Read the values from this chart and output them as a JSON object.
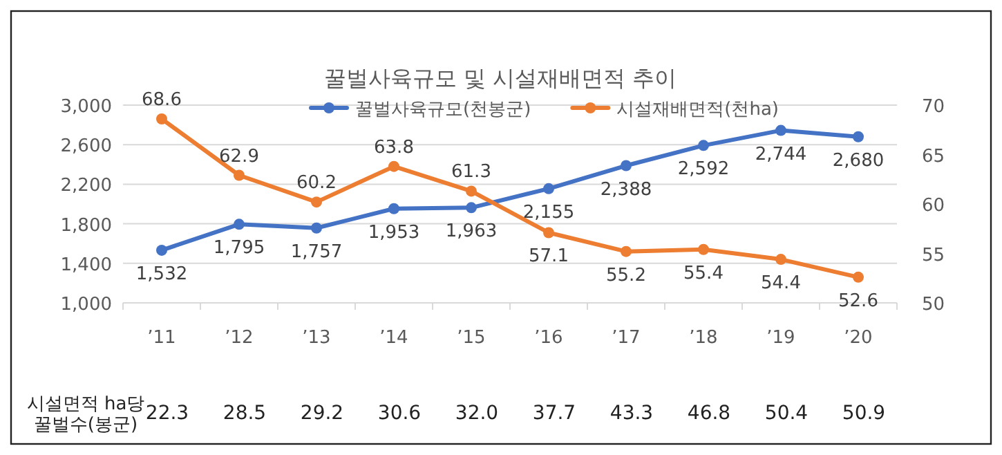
{
  "chart_data": {
    "type": "line",
    "title": "꿀벌사육규모 및 시설재배면적 추이",
    "categories": [
      "’11",
      "’12",
      "’13",
      "’14",
      "’15",
      "’16",
      "’17",
      "’18",
      "’19",
      "’20"
    ],
    "series": [
      {
        "name": "꿀벌사육규모(천봉군)",
        "color": "#4472c4",
        "values": [
          1532,
          1795,
          1757,
          1953,
          1963,
          2155,
          2388,
          2592,
          2744,
          2680
        ],
        "value_labels": [
          "1,532",
          "1,795",
          "1,757",
          "1,953",
          "1,963",
          "2,155",
          "2,388",
          "2,592",
          "2,744",
          "2,680"
        ]
      },
      {
        "name": "시설재배면적(천ha)",
        "color": "#ed7d31",
        "axis": "y2",
        "values": [
          68.6,
          62.9,
          60.2,
          63.8,
          61.3,
          57.1,
          55.2,
          55.4,
          54.4,
          52.6
        ],
        "value_labels": [
          "68.6",
          "62.9",
          "60.2",
          "63.8",
          "61.3",
          "57.1",
          "55.2",
          "55.4",
          "54.4",
          "52.6"
        ]
      }
    ],
    "ylim": [
      1000,
      3000
    ],
    "yticks": [
      {
        "value": 1000,
        "label": "1,000"
      },
      {
        "value": 1400,
        "label": "1,400"
      },
      {
        "value": 1800,
        "label": "1,800"
      },
      {
        "value": 2200,
        "label": "2,200"
      },
      {
        "value": 2600,
        "label": "2,600"
      },
      {
        "value": 3000,
        "label": "3,000"
      }
    ],
    "y2lim": [
      50,
      70
    ],
    "y2ticks": [
      50,
      55,
      60,
      65,
      70
    ],
    "grid": "y",
    "legend": "top",
    "marker": "circle",
    "line_style": "solid",
    "annotations": [
      "시설면적 ha당 꿀벌수(봉군)",
      "22.3",
      "28.5",
      "29.2",
      "30.6",
      "32.0",
      "37.7",
      "43.3",
      "46.8",
      "50.4",
      "50.9"
    ]
  }
}
